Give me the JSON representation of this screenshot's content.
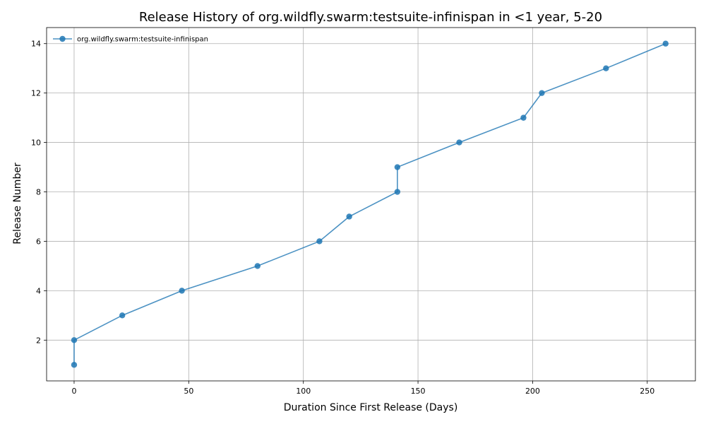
{
  "chart_data": {
    "type": "line",
    "title": "Release History of org.wildfly.swarm:testsuite-infinispan in <1 year, 5-20",
    "xlabel": "Duration Since First Release (Days)",
    "ylabel": "Release Number",
    "xlim": [
      -12,
      271
    ],
    "ylim": [
      0.35,
      14.65
    ],
    "xticks": [
      0,
      50,
      100,
      150,
      200,
      250
    ],
    "yticks": [
      2,
      4,
      6,
      8,
      10,
      12,
      14
    ],
    "grid": true,
    "legend_position": "top-left",
    "series": [
      {
        "name": "org.wildfly.swarm:testsuite-infinispan",
        "color": "#1f77b4",
        "x": [
          0,
          0,
          21,
          47,
          80,
          107,
          120,
          141,
          141,
          168,
          196,
          204,
          232,
          258
        ],
        "y": [
          1,
          2,
          3,
          4,
          5,
          6,
          7,
          8,
          9,
          10,
          11,
          12,
          13,
          14
        ]
      }
    ]
  }
}
